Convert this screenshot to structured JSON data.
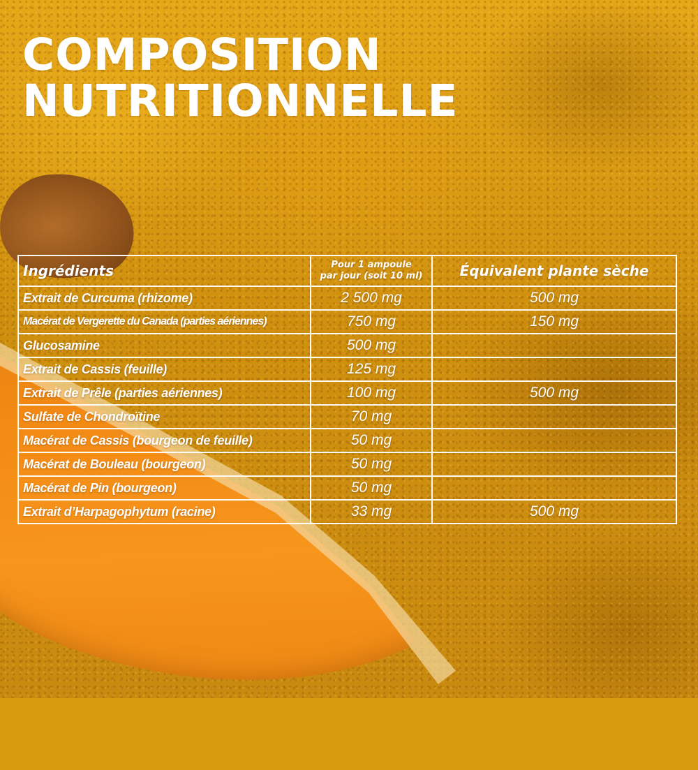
{
  "title": {
    "line1": "COMPOSITION",
    "line2": "NUTRITIONNELLE"
  },
  "table": {
    "headers": {
      "ingredients": "Ingrédients",
      "dose_line1": "Pour 1 ampoule",
      "dose_line2": "par jour (soit 10 ml)",
      "equivalent": "Équivalent plante sèche"
    },
    "rows": [
      {
        "ingredient": "Extrait de Curcuma (rhizome)",
        "dose": "2 500 mg",
        "equivalent": "500 mg"
      },
      {
        "ingredient": "Macérat de Vergerette du Canada (parties aériennes)",
        "dose": "750 mg",
        "equivalent": "150 mg"
      },
      {
        "ingredient": "Glucosamine",
        "dose": "500 mg",
        "equivalent": ""
      },
      {
        "ingredient": "Extrait de Cassis (feuille)",
        "dose": "125 mg",
        "equivalent": ""
      },
      {
        "ingredient": "Extrait de Prêle (parties aériennes)",
        "dose": "100 mg",
        "equivalent": "500 mg"
      },
      {
        "ingredient": "Sulfate de Chondroïtine",
        "dose": "70 mg",
        "equivalent": ""
      },
      {
        "ingredient": "Macérat de Cassis (bourgeon de feuille)",
        "dose": "50 mg",
        "equivalent": ""
      },
      {
        "ingredient": "Macérat de Bouleau (bourgeon)",
        "dose": "50 mg",
        "equivalent": ""
      },
      {
        "ingredient": "Macérat de Pin (bourgeon)",
        "dose": "50 mg",
        "equivalent": ""
      },
      {
        "ingredient": "Extrait d’Harpagophytum (racine)",
        "dose": "33 mg",
        "equivalent": "500 mg"
      }
    ]
  },
  "colors": {
    "text": "#ffffff",
    "background_turmeric": "#d99a12",
    "root_orange": "#f28a14"
  }
}
